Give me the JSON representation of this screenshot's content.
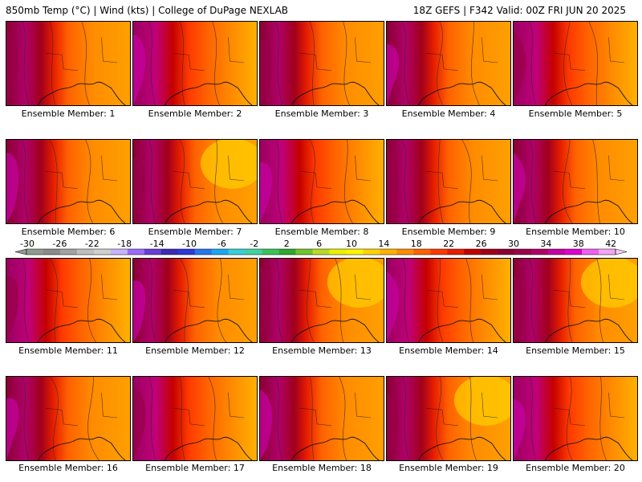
{
  "header": {
    "left": "850mb Temp (°C) | Wind (kts) | College of DuPage NEXLAB",
    "right": "18Z GEFS | F342 Valid: 00Z FRI JUN 20 2025"
  },
  "colorbar": {
    "ticks": [
      "-30",
      "-26",
      "-22",
      "-18",
      "-14",
      "-10",
      "-6",
      "-2",
      "2",
      "6",
      "10",
      "14",
      "18",
      "22",
      "26",
      "30",
      "34",
      "38",
      "42"
    ],
    "colors": [
      "#8f9c8f",
      "#8a8a8a",
      "#a2a2a2",
      "#bfbfbf",
      "#cfcfcf",
      "#c8b4ff",
      "#9b6bff",
      "#6a3fd6",
      "#3c2ab5",
      "#2d39d8",
      "#2478ee",
      "#1aa7f0",
      "#36d1d9",
      "#3fd3a2",
      "#3bc25a",
      "#2fa82f",
      "#73c42b",
      "#b9da22",
      "#eaf000",
      "#fff200",
      "#ffd400",
      "#ffb000",
      "#ff8c00",
      "#ff6200",
      "#ff3a00",
      "#e61e00",
      "#c40000",
      "#a1001b",
      "#8a0032",
      "#9a004a",
      "#b0006a",
      "#c600a0",
      "#e000d0",
      "#f060f0",
      "#f4a6f4"
    ]
  },
  "panels": [
    {
      "label": "Ensemble Member: 1"
    },
    {
      "label": "Ensemble Member: 2"
    },
    {
      "label": "Ensemble Member: 3"
    },
    {
      "label": "Ensemble Member: 4"
    },
    {
      "label": "Ensemble Member: 5"
    },
    {
      "label": "Ensemble Member: 6"
    },
    {
      "label": "Ensemble Member: 7"
    },
    {
      "label": "Ensemble Member: 8"
    },
    {
      "label": "Ensemble Member: 9"
    },
    {
      "label": "Ensemble Member: 10"
    },
    {
      "label": "Ensemble Member: 11"
    },
    {
      "label": "Ensemble Member: 12"
    },
    {
      "label": "Ensemble Member: 13"
    },
    {
      "label": "Ensemble Member: 14"
    },
    {
      "label": "Ensemble Member: 15"
    },
    {
      "label": "Ensemble Member: 16"
    },
    {
      "label": "Ensemble Member: 17"
    },
    {
      "label": "Ensemble Member: 18"
    },
    {
      "label": "Ensemble Member: 19"
    },
    {
      "label": "Ensemble Member: 20"
    }
  ]
}
